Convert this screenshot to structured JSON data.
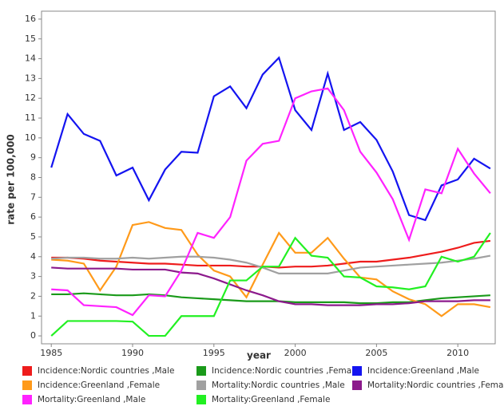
{
  "chart_data": {
    "type": "line",
    "x_label": "year",
    "y_label": "rate per 100,000",
    "x": [
      1985,
      1986,
      1987,
      1988,
      1989,
      1990,
      1991,
      1992,
      1993,
      1994,
      1995,
      1996,
      1997,
      1998,
      1999,
      2000,
      2001,
      2002,
      2003,
      2004,
      2005,
      2006,
      2007,
      2008,
      2009,
      2010,
      2011,
      2012
    ],
    "series": [
      {
        "name": "Incidence:Nordic countries ,Male",
        "color": "#ee1c1c",
        "values": [
          3.95,
          3.95,
          3.9,
          3.8,
          3.75,
          3.7,
          3.65,
          3.65,
          3.6,
          3.55,
          3.55,
          3.55,
          3.5,
          3.5,
          3.45,
          3.5,
          3.5,
          3.55,
          3.65,
          3.75,
          3.75,
          3.85,
          3.95,
          4.1,
          4.25,
          4.45,
          4.7,
          4.8
        ]
      },
      {
        "name": "Incidence:Nordic countries ,Female",
        "color": "#1a9a1a",
        "values": [
          2.1,
          2.1,
          2.15,
          2.1,
          2.05,
          2.05,
          2.1,
          2.05,
          1.95,
          1.9,
          1.85,
          1.8,
          1.75,
          1.75,
          1.75,
          1.7,
          1.7,
          1.7,
          1.7,
          1.65,
          1.65,
          1.7,
          1.7,
          1.8,
          1.9,
          1.95,
          2.0,
          2.05
        ]
      },
      {
        "name": "Incidence:Greenland ,Male",
        "color": "#1414f0",
        "values": [
          8.5,
          11.2,
          10.2,
          9.85,
          8.1,
          8.5,
          6.85,
          8.4,
          9.3,
          9.25,
          12.1,
          12.6,
          11.5,
          13.2,
          14.05,
          11.4,
          10.4,
          13.25,
          10.4,
          10.8,
          9.9,
          8.3,
          6.1,
          5.85,
          7.6,
          7.9,
          8.95,
          8.45
        ]
      },
      {
        "name": "Incidence:Greenland ,Female",
        "color": "#ff9a1a",
        "values": [
          3.85,
          3.8,
          3.65,
          2.3,
          3.5,
          5.6,
          5.75,
          5.45,
          5.35,
          4.1,
          3.3,
          3.0,
          1.95,
          3.6,
          5.2,
          4.2,
          4.2,
          4.95,
          3.9,
          2.95,
          2.85,
          2.25,
          1.85,
          1.6,
          1.0,
          1.6,
          1.6,
          1.45
        ]
      },
      {
        "name": "Mortality:Nordic countries ,Male",
        "color": "#a0a0a0",
        "values": [
          3.9,
          3.95,
          3.95,
          3.9,
          3.9,
          3.95,
          3.9,
          3.95,
          4.0,
          4.0,
          3.95,
          3.85,
          3.7,
          3.45,
          3.15,
          3.15,
          3.15,
          3.15,
          3.3,
          3.45,
          3.5,
          3.55,
          3.6,
          3.65,
          3.7,
          3.8,
          3.9,
          4.05
        ]
      },
      {
        "name": "Mortality:Nordic countries ,Female",
        "color": "#8c1a8c",
        "values": [
          3.45,
          3.4,
          3.4,
          3.4,
          3.4,
          3.35,
          3.35,
          3.35,
          3.2,
          3.15,
          2.9,
          2.6,
          2.3,
          2.05,
          1.75,
          1.6,
          1.6,
          1.55,
          1.55,
          1.55,
          1.6,
          1.6,
          1.65,
          1.75,
          1.75,
          1.75,
          1.8,
          1.8
        ]
      },
      {
        "name": "Mortality:Greenland ,Male",
        "color": "#ff22ff",
        "values": [
          2.35,
          2.3,
          1.55,
          1.5,
          1.45,
          1.05,
          2.05,
          2.0,
          3.3,
          5.2,
          4.95,
          6.0,
          8.85,
          9.7,
          9.85,
          12.0,
          12.35,
          12.5,
          11.4,
          9.3,
          8.25,
          6.9,
          4.85,
          7.4,
          7.2,
          9.45,
          8.2,
          7.2
        ]
      },
      {
        "name": "Mortality:Greenland ,Female",
        "color": "#22f022",
        "values": [
          0,
          0.75,
          0.75,
          0.75,
          0.75,
          0.72,
          0,
          0,
          1.0,
          1.0,
          1.0,
          2.8,
          2.8,
          3.5,
          3.5,
          4.95,
          4.05,
          3.95,
          3.0,
          2.95,
          2.5,
          2.45,
          2.35,
          2.5,
          4.0,
          3.75,
          4.0,
          5.2
        ]
      }
    ],
    "xlim": [
      1984.4,
      2012.3
    ],
    "xticks": [
      1985,
      1990,
      1995,
      2000,
      2005,
      2010
    ],
    "ylim": [
      -0.4,
      16.4
    ],
    "yticks": [
      0,
      1,
      2,
      3,
      4,
      5,
      6,
      7,
      8,
      9,
      10,
      11,
      12,
      13,
      14,
      15,
      16
    ],
    "grid": false
  }
}
